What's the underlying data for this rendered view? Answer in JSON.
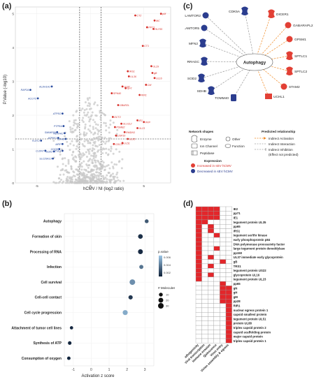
{
  "panels": {
    "a": "(a)",
    "b": "(b)",
    "c": "(c)",
    "d": "(d)"
  },
  "colors": {
    "up": "#d8302a",
    "down": "#2b4da0",
    "ns": "#c8c8c8",
    "ipa_up": "#e24035",
    "ipa_down": "#2b3d8f",
    "activation": "#f08a24",
    "heat_on": "#e3262a",
    "heat_off": "#ffffff",
    "grid": "#9a9a9a",
    "bubble_low": "#9cc6e6",
    "bubble_high": "#10223a"
  },
  "chart_data": [
    {
      "type": "scatter",
      "panel": "a",
      "xlabel": "hCMV / NI (log2 ratio)",
      "ylabel": "P.Value (-log10)",
      "xlim": [
        -7,
        7.5
      ],
      "ylim": [
        0,
        5.2
      ],
      "xticks": [
        -5,
        0,
        5
      ],
      "yticks": [
        0,
        1,
        2,
        3,
        4,
        5
      ],
      "thresholds": {
        "x": [
          -1,
          1
        ],
        "y": 1.3
      },
      "up_labels": [
        {
          "text": "pM",
          "x": 6.6,
          "y": 5.0
        },
        {
          "text": "CT2",
          "x": 4.2,
          "y": 4.95
        },
        {
          "text": "MC",
          "x": 6.0,
          "y": 4.8
        },
        {
          "text": "PP71",
          "x": 5.3,
          "y": 4.6
        },
        {
          "text": "HLY55",
          "x": 5.9,
          "y": 4.55
        },
        {
          "text": "CT1",
          "x": 4.9,
          "y": 4.05
        },
        {
          "text": "UL29",
          "x": 5.7,
          "y": 3.45
        },
        {
          "text": "IRS1",
          "x": 3.5,
          "y": 3.3
        },
        {
          "text": "gB",
          "x": 5.8,
          "y": 3.25
        },
        {
          "text": "UL36",
          "x": 3.6,
          "y": 3.15
        },
        {
          "text": "UL16",
          "x": 6.0,
          "y": 3.1
        },
        {
          "text": "CM",
          "x": 5.2,
          "y": 2.9
        },
        {
          "text": "UL87",
          "x": 3.0,
          "y": 2.85
        },
        {
          "text": "SPT",
          "x": 3.3,
          "y": 2.8
        },
        {
          "text": "SPN40",
          "x": 2.0,
          "y": 2.65
        },
        {
          "text": "RIR1",
          "x": 4.6,
          "y": 2.6
        },
        {
          "text": "GBAR2L",
          "x": 2.6,
          "y": 2.3
        },
        {
          "text": "DCT2",
          "x": 2.1,
          "y": 1.95
        },
        {
          "text": "IE1",
          "x": 4.4,
          "y": 1.85
        },
        {
          "text": "PPP",
          "x": 5.0,
          "y": 1.8
        },
        {
          "text": "ULU112",
          "x": 2.9,
          "y": 1.75
        },
        {
          "text": "PSMB2",
          "x": 2.3,
          "y": 1.65
        },
        {
          "text": "UL23",
          "x": 4.4,
          "y": 1.62
        },
        {
          "text": "RMDN3",
          "x": 3.2,
          "y": 1.5
        },
        {
          "text": "USP15",
          "x": 2.4,
          "y": 1.4
        },
        {
          "text": "UL85",
          "x": 3.5,
          "y": 1.3
        },
        {
          "text": "UL51",
          "x": 3.0,
          "y": 1.18
        },
        {
          "text": "CDC27",
          "x": 2.2,
          "y": 1.15
        }
      ],
      "down_labels": [
        {
          "text": "RAP2A",
          "x": -5.6,
          "y": 2.75
        },
        {
          "text": "ALDH1A1",
          "x": -3.6,
          "y": 2.85
        },
        {
          "text": "ACOT2",
          "x": -4.9,
          "y": 2.5
        },
        {
          "text": "ATP5O",
          "x": -2.6,
          "y": 2.05
        },
        {
          "text": "PTPRA",
          "x": -2.5,
          "y": 1.68
        },
        {
          "text": "SMIMR50",
          "x": -3.1,
          "y": 1.5
        },
        {
          "text": "NDUFA2",
          "x": -2.4,
          "y": 1.47
        },
        {
          "text": "ATP5F1",
          "x": -3.0,
          "y": 1.33
        },
        {
          "text": "SDHB",
          "x": -2.3,
          "y": 1.3
        },
        {
          "text": "FLRT2",
          "x": -4.6,
          "y": 1.25
        },
        {
          "text": "MRP",
          "x": -2.6,
          "y": 1.15
        },
        {
          "text": "COQ9",
          "x": -2.9,
          "y": 1.0
        },
        {
          "text": "CLDN7",
          "x": -4.2,
          "y": 0.95
        },
        {
          "text": "SOD2",
          "x": -3.4,
          "y": 0.93
        },
        {
          "text": "CUL1",
          "x": -2.6,
          "y": 0.95
        },
        {
          "text": "SLC25A13",
          "x": -3.5,
          "y": 0.72
        }
      ]
    },
    {
      "type": "scatter",
      "panel": "b",
      "xlabel": "Activation z score",
      "xlim": [
        -1.5,
        3.5
      ],
      "xticks": [
        -1,
        0,
        1,
        2,
        3
      ],
      "categories": [
        "Autophagy",
        "Formation of skin",
        "Processing of RNA",
        "Infection",
        "Cell survival",
        "Cell-cell contact",
        "Cell cycle progression",
        "Attachment of tumor cell lines",
        "Synthesis of ATP",
        "Consumption of oxygen"
      ],
      "z": [
        3.1,
        2.75,
        2.75,
        2.8,
        2.3,
        2.2,
        1.9,
        -1.1,
        -1.2,
        -1.25
      ],
      "molecules": [
        10,
        18,
        20,
        12,
        30,
        14,
        22,
        6,
        8,
        7
      ],
      "pvalue": [
        0.002,
        0.0005,
        0.0003,
        0.003,
        0.004,
        0.0008,
        0.005,
        0.0002,
        0.0001,
        0.0001
      ],
      "legend_pvalue_title": "p.value",
      "legend_pvalue_ticks": [
        "0.006",
        "0.004",
        "0.002"
      ],
      "legend_size_title": "# Molecules",
      "legend_size_values": [
        "10",
        "20",
        "30"
      ]
    },
    {
      "type": "heatmap",
      "panel": "d",
      "columns": [
        "Pathogenicity",
        "Viral transcription",
        "Immune evasion",
        "Quiescence",
        "Virus entry",
        "Virion assembly & egress"
      ],
      "rows": [
        "IE2",
        "pp71",
        "IE1",
        "tegument protein UL35",
        "pp65",
        "IRS1",
        "tegument ser/thr kinase",
        "early phosphoprotein p84",
        "DNA polymerase processivity factor",
        "large tegument protein deneddylase",
        "pp150",
        "UL37 immediate early glycoprotein",
        "gB",
        "TRS1",
        "tegument protein US22",
        "glycoprotein UL16",
        "tegument protein UL23",
        "pp65",
        "gN",
        "gH",
        "gM",
        "pp28",
        "RIR1",
        "nuclear egress protein 1",
        "capsid smallest protein",
        "tegument protein UL51",
        "protein UL88",
        "triplex capsid protein 2",
        "capsid scaffolding protein",
        "major capsid protein",
        "triplex capsid protein 1"
      ],
      "cells": [
        [
          1,
          1,
          1,
          1,
          0,
          0
        ],
        [
          1,
          1,
          1,
          1,
          0,
          0
        ],
        [
          1,
          1,
          1,
          1,
          0,
          0
        ],
        [
          1,
          1,
          0,
          0,
          0,
          0
        ],
        [
          1,
          0,
          1,
          0,
          0,
          0
        ],
        [
          1,
          0,
          1,
          0,
          0,
          0
        ],
        [
          1,
          0,
          0,
          1,
          0,
          0
        ],
        [
          1,
          0,
          0,
          0,
          0,
          0
        ],
        [
          1,
          0,
          0,
          0,
          0,
          0
        ],
        [
          1,
          0,
          0,
          1,
          0,
          0
        ],
        [
          1,
          0,
          0,
          0,
          0,
          0
        ],
        [
          1,
          0,
          1,
          0,
          0,
          0
        ],
        [
          1,
          0,
          0,
          0,
          1,
          0
        ],
        [
          1,
          0,
          1,
          0,
          0,
          0
        ],
        [
          1,
          0,
          0,
          0,
          0,
          0
        ],
        [
          1,
          0,
          1,
          0,
          0,
          0
        ],
        [
          1,
          0,
          0,
          0,
          0,
          0
        ],
        [
          0,
          0,
          0,
          0,
          1,
          0
        ],
        [
          0,
          0,
          0,
          0,
          1,
          1
        ],
        [
          0,
          0,
          0,
          0,
          1,
          1
        ],
        [
          0,
          0,
          0,
          0,
          1,
          1
        ],
        [
          0,
          0,
          0,
          0,
          1,
          1
        ],
        [
          0,
          0,
          0,
          0,
          0,
          1
        ],
        [
          0,
          0,
          0,
          0,
          0,
          1
        ],
        [
          0,
          0,
          0,
          0,
          0,
          1
        ],
        [
          0,
          0,
          0,
          0,
          0,
          1
        ],
        [
          0,
          0,
          0,
          0,
          0,
          1
        ],
        [
          0,
          0,
          0,
          0,
          0,
          1
        ],
        [
          0,
          0,
          0,
          0,
          0,
          1
        ],
        [
          0,
          0,
          0,
          0,
          0,
          1
        ],
        [
          0,
          0,
          0,
          0,
          0,
          1
        ]
      ]
    }
  ],
  "network": {
    "hub": "Autophagy",
    "nodes": [
      {
        "label": "CDK5A",
        "dir": "down",
        "icon": "enzyme"
      },
      {
        "label": "LAMTOR2",
        "dir": "down",
        "icon": "other"
      },
      {
        "label": "LAMTOR5",
        "dir": "down",
        "icon": "other"
      },
      {
        "label": "MFN2",
        "dir": "down",
        "icon": "enzyme"
      },
      {
        "label": "RRAGC",
        "dir": "down",
        "icon": "enzyme"
      },
      {
        "label": "SOD2",
        "dir": "down",
        "icon": "enzyme"
      },
      {
        "label": "SDHB",
        "dir": "down",
        "icon": "enzyme"
      },
      {
        "label": "TOMM40",
        "dir": "down",
        "icon": "channel"
      },
      {
        "label": "DICER1",
        "dir": "up",
        "icon": "enzyme"
      },
      {
        "label": "GABARAPL2",
        "dir": "up",
        "icon": "other"
      },
      {
        "label": "GPSM1",
        "dir": "up",
        "icon": "other"
      },
      {
        "label": "SPTLC1",
        "dir": "up",
        "icon": "enzyme"
      },
      {
        "label": "SPTLC2",
        "dir": "up",
        "icon": "enzyme"
      },
      {
        "label": "STAM2",
        "dir": "up",
        "icon": "other"
      },
      {
        "label": "UCHL1",
        "dir": "up",
        "icon": "peptidase"
      }
    ],
    "legend": {
      "shapes_title": "Network shapes",
      "enzyme": "Enzyme",
      "other": "Other",
      "channel": "Ion Channel",
      "function": "Function",
      "peptidase": "Peptidase",
      "relationship_title": "Predicted relationship",
      "rel_activation": "Indirect Activation",
      "rel_indirect": "Indirect Interaction",
      "rel_inhibition": "Indirect Inhibition",
      "rel_effect": "(Effect not predicted)",
      "expression_title": "Expression",
      "expr_up": "Increased in sEV hCMV",
      "expr_down": "Decreased in sEV hCMV"
    }
  }
}
